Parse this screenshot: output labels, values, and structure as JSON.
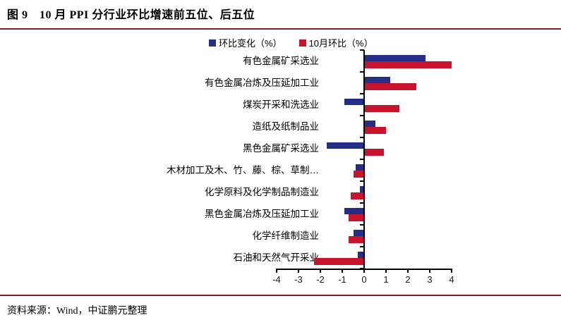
{
  "figure": {
    "title": "图 9　10 月 PPI 分行业环比增速前五位、后五位",
    "source": "资料来源：Wind，中证鹏元整理"
  },
  "colors": {
    "series_blue": "#252E87",
    "series_red": "#C9122B",
    "divider_red": "#8B1A1A",
    "axis": "#000000"
  },
  "chart_data": {
    "type": "bar",
    "orientation": "horizontal",
    "title": "10 月 PPI 分行业环比增速前五位、后五位",
    "categories": [
      "有色金属矿采选业",
      "有色金属冶炼及压延加工业",
      "煤炭开采和洗选业",
      "造纸及纸制品业",
      "黑色金属矿采选业",
      "木材加工及木、竹、藤、棕、草制…",
      "化学原料及化学制品制造业",
      "黑色金属冶炼及压延加工业",
      "化学纤维制造业",
      "石油和天然气开采业"
    ],
    "series": [
      {
        "name": "环比变化（%）",
        "color": "#252E87",
        "values": [
          2.8,
          1.2,
          -0.9,
          0.5,
          -1.7,
          -0.4,
          -0.2,
          -0.9,
          -0.5,
          -0.3
        ]
      },
      {
        "name": "10月环比（%）",
        "color": "#C9122B",
        "values": [
          4.0,
          2.4,
          1.6,
          1.0,
          0.9,
          -0.5,
          -0.6,
          -0.7,
          -0.7,
          -2.3
        ]
      }
    ],
    "xlim": [
      -4,
      4
    ],
    "x_ticks": [
      -4,
      -3,
      -2,
      -1,
      0,
      1,
      2,
      3,
      4
    ],
    "xlabel": "",
    "ylabel": "",
    "legend_position": "top",
    "grid": false
  }
}
